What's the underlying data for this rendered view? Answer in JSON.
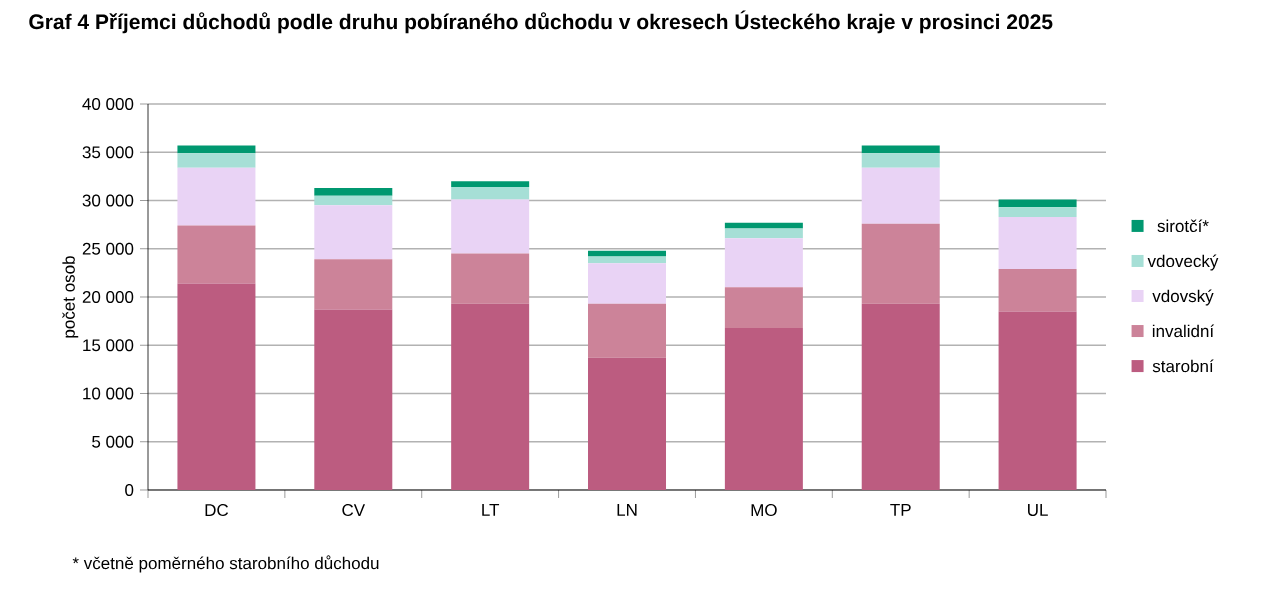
{
  "chart_data": {
    "type": "bar",
    "stacked": true,
    "title": "Graf 4 Příjemci důchodů podle druhu pobíraného důchodu v okresech Ústeckého kraje v prosinci 2025",
    "ylabel": "počet osob",
    "categories": [
      "DC",
      "CV",
      "LT",
      "LN",
      "MO",
      "TP",
      "UL"
    ],
    "series": [
      {
        "name": "starobní",
        "color": "#bc5c80",
        "values": [
          21400,
          18700,
          19300,
          13700,
          16800,
          19300,
          18500
        ]
      },
      {
        "name": "invalidní",
        "color": "#cc8399",
        "values": [
          6000,
          5200,
          5200,
          5600,
          4200,
          8300,
          4400
        ]
      },
      {
        "name": "vdovský",
        "color": "#e9d3f5",
        "values": [
          6000,
          5600,
          5600,
          4200,
          5100,
          5800,
          5400
        ]
      },
      {
        "name": "vdovecký",
        "color": "#a6dfd6",
        "values": [
          1500,
          1000,
          1300,
          700,
          1000,
          1500,
          1000
        ]
      },
      {
        "name": "sirotčí*",
        "color": "#009870",
        "values": [
          800,
          800,
          600,
          600,
          600,
          800,
          800
        ]
      }
    ],
    "ylim": [
      0,
      40000
    ],
    "yticks": [
      0,
      {
        "value": 5000,
        "label": "5 000"
      },
      {
        "value": 10000,
        "label": "10 000"
      },
      {
        "value": 15000,
        "label": "15 000"
      },
      {
        "value": 20000,
        "label": "20 000"
      },
      {
        "value": 25000,
        "label": "25 000"
      },
      {
        "value": 30000,
        "label": "30 000"
      },
      {
        "value": 35000,
        "label": "35 000"
      },
      {
        "value": 40000,
        "label": "40 000"
      }
    ],
    "grid": "y",
    "legend": "right",
    "annotations": [
      "* včetně poměrného starobního důchodu"
    ]
  }
}
